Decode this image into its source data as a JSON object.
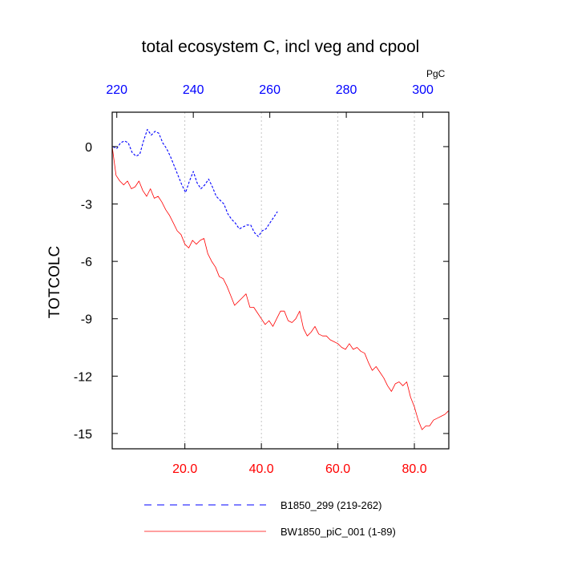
{
  "chart_data": {
    "type": "line",
    "title": "total ecosystem C, incl veg and cpool",
    "ylabel": "TOTCOLC",
    "top_axis_unit": "PgC",
    "ylim": [
      -15.8,
      1.8
    ],
    "y_ticks": [
      0,
      -3,
      -6,
      -9,
      -12,
      -15
    ],
    "y_tick_labels": [
      "0",
      "-3",
      "-6",
      "-9",
      "-12",
      "-15"
    ],
    "xlim_bottom": [
      1,
      89
    ],
    "x_ticks_bottom": [
      20,
      40,
      60,
      80
    ],
    "x_tick_labels_bottom": [
      "20.0",
      "40.0",
      "60.0",
      "80.0"
    ],
    "xlim_top": [
      218.8,
      306.8
    ],
    "x_ticks_top": [
      220,
      240,
      260,
      280,
      300
    ],
    "x_tick_labels_top": [
      "220",
      "240",
      "260",
      "280",
      "300"
    ],
    "series": [
      {
        "name": "B1850_299 (219-262)",
        "legend_label": "B1850_299 (219-262)",
        "color": "#0000ff",
        "style": "dashed",
        "x_axis": "top",
        "x": [
          219,
          220,
          221,
          222,
          223,
          224,
          225,
          226,
          227,
          228,
          229,
          230,
          231,
          232,
          233,
          234,
          235,
          236,
          237,
          238,
          239,
          240,
          241,
          242,
          243,
          244,
          245,
          246,
          247,
          248,
          249,
          250,
          251,
          252,
          253,
          254,
          255,
          256,
          257,
          258,
          259,
          260,
          261,
          262
        ],
        "y": [
          0.0,
          -0.1,
          0.2,
          0.3,
          0.2,
          -0.3,
          -0.5,
          -0.4,
          0.3,
          0.9,
          0.6,
          0.8,
          0.7,
          0.2,
          -0.1,
          -0.5,
          -1.0,
          -1.5,
          -2.0,
          -2.4,
          -1.8,
          -1.3,
          -1.9,
          -2.2,
          -2.0,
          -1.7,
          -2.1,
          -2.6,
          -2.8,
          -3.0,
          -3.5,
          -3.8,
          -4.0,
          -4.3,
          -4.2,
          -4.1,
          -4.1,
          -4.5,
          -4.7,
          -4.4,
          -4.3,
          -4.0,
          -3.7,
          -3.4
        ]
      },
      {
        "name": "BW1850_piC_001 (1-89)",
        "legend_label": "BW1850_piC_001 (1-89)",
        "color": "#ff0000",
        "style": "solid",
        "x_axis": "bottom",
        "x": [
          1,
          2,
          3,
          4,
          5,
          6,
          7,
          8,
          9,
          10,
          11,
          12,
          13,
          14,
          15,
          16,
          17,
          18,
          19,
          20,
          21,
          22,
          23,
          24,
          25,
          26,
          27,
          28,
          29,
          30,
          31,
          32,
          33,
          34,
          35,
          36,
          37,
          38,
          39,
          40,
          41,
          42,
          43,
          44,
          45,
          46,
          47,
          48,
          49,
          50,
          51,
          52,
          53,
          54,
          55,
          56,
          57,
          58,
          59,
          60,
          61,
          62,
          63,
          64,
          65,
          66,
          67,
          68,
          69,
          70,
          71,
          72,
          73,
          74,
          75,
          76,
          77,
          78,
          79,
          80,
          81,
          82,
          83,
          84,
          85,
          86,
          87,
          88,
          89
        ],
        "y": [
          0.0,
          -1.5,
          -1.8,
          -2.0,
          -1.8,
          -2.2,
          -2.1,
          -1.8,
          -2.3,
          -2.6,
          -2.2,
          -2.7,
          -2.6,
          -2.9,
          -3.3,
          -3.6,
          -4.0,
          -4.4,
          -4.6,
          -5.1,
          -5.3,
          -4.9,
          -5.1,
          -4.9,
          -4.8,
          -5.6,
          -6.0,
          -6.3,
          -6.8,
          -6.9,
          -7.3,
          -7.8,
          -8.3,
          -8.1,
          -7.9,
          -7.7,
          -8.4,
          -8.4,
          -8.7,
          -9.0,
          -9.3,
          -9.1,
          -9.4,
          -9.0,
          -8.6,
          -8.6,
          -9.1,
          -9.2,
          -9.0,
          -8.6,
          -9.5,
          -9.9,
          -9.7,
          -9.4,
          -9.8,
          -9.9,
          -9.9,
          -10.1,
          -10.2,
          -10.3,
          -10.5,
          -10.6,
          -10.3,
          -10.6,
          -10.5,
          -10.7,
          -10.8,
          -11.3,
          -11.7,
          -11.5,
          -11.8,
          -12.1,
          -12.5,
          -12.8,
          -12.4,
          -12.3,
          -12.5,
          -12.3,
          -13.1,
          -13.6,
          -14.3,
          -14.8,
          -14.6,
          -14.6,
          -14.3,
          -14.2,
          -14.1,
          -14.0,
          -13.8
        ]
      }
    ]
  }
}
